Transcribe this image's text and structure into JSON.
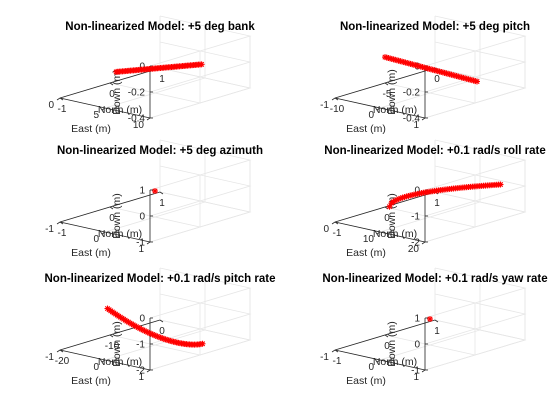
{
  "marker_color": "#ff0000",
  "chart_data": [
    {
      "type": "scatter",
      "title": "Non-linearized Model: +5 deg bank",
      "xlabel": "East (m)",
      "ylabel": "North (m)",
      "zlabel": "Down (m)",
      "xlim": [
        0,
        10
      ],
      "ylim": [
        -1,
        1
      ],
      "zlim": [
        -0.4,
        0
      ],
      "xticks": [
        0,
        5,
        10
      ],
      "yticks": [
        -1,
        0,
        1
      ],
      "zticks": [
        -0.4,
        -0.2,
        0
      ],
      "xticklabels": [
        "0",
        "5",
        "10"
      ],
      "yticklabels": [
        "-1",
        "0",
        "1"
      ],
      "zticklabels": [
        "-0.4",
        "-0.2",
        "0"
      ],
      "series": [
        {
          "x0": 0.8,
          "x1": 9.9,
          "y0": -0.02,
          "y1": 0.05,
          "z0": -0.3,
          "z1": -0.11,
          "n": 55,
          "curve": 0.0
        }
      ]
    },
    {
      "type": "scatter",
      "title": "Non-linearized Model: +5 deg pitch",
      "xlabel": "East (m)",
      "ylabel": "North (m)",
      "zlabel": "Down (m)",
      "xlim": [
        -1,
        1
      ],
      "ylim": [
        -10,
        0
      ],
      "zlim": [
        -0.4,
        0
      ],
      "xticks": [
        -1,
        0,
        1
      ],
      "yticks": [
        -10,
        -5,
        0
      ],
      "zticks": [
        -0.4,
        -0.2,
        0
      ],
      "xticklabels": [
        "-1",
        "0",
        "1"
      ],
      "yticklabels": [
        "-10",
        "-5",
        "0"
      ],
      "zticklabels": [
        "-0.4",
        "-0.2",
        "0"
      ],
      "series": [
        {
          "x0": 0.0,
          "x1": 0.0,
          "y0": -0.3,
          "y1": -9.5,
          "z0": -0.42,
          "z1": -0.02,
          "n": 55,
          "curve": 0.0
        }
      ]
    },
    {
      "type": "scatter",
      "title": "Non-linearized Model: +5 deg azimuth",
      "xlabel": "East (m)",
      "ylabel": "North (m)",
      "zlabel": "Down (m)",
      "xlim": [
        -1,
        1
      ],
      "ylim": [
        -1,
        1
      ],
      "zlim": [
        -1,
        1
      ],
      "xticks": [
        -1,
        0,
        1
      ],
      "yticks": [
        -1,
        0,
        1
      ],
      "zticks": [
        -1,
        0,
        1
      ],
      "xticklabels": [
        "-1",
        "0",
        "1"
      ],
      "yticklabels": [
        "-1",
        "0",
        "1"
      ],
      "zticklabels": [
        "-1",
        "0",
        "1"
      ],
      "series": [
        {
          "x0": 0,
          "x1": 0,
          "y0": 0,
          "y1": 0,
          "z0": 0,
          "z1": 0,
          "n": 1,
          "curve": 0.0
        }
      ]
    },
    {
      "type": "scatter",
      "title": "Non-linearized Model: +0.1 rad/s roll rate",
      "xlabel": "East (m)",
      "ylabel": "North (m)",
      "zlabel": "Down (m)",
      "xlim": [
        0,
        20
      ],
      "ylim": [
        -1,
        1
      ],
      "zlim": [
        -2,
        0
      ],
      "xticks": [
        0,
        10,
        20
      ],
      "yticks": [
        -1,
        0,
        1
      ],
      "zticks": [
        -2,
        -1,
        0
      ],
      "xticklabels": [
        "0",
        "10",
        "20"
      ],
      "yticklabels": [
        "-1",
        "0",
        "1"
      ],
      "zticklabels": [
        "-2",
        "-1",
        "0"
      ],
      "series": [
        {
          "x0": 1.0,
          "x1": 19.0,
          "y0": 0.0,
          "y1": 0.6,
          "z0": -1.95,
          "z1": -0.75,
          "n": 60,
          "curve": 0.9
        }
      ]
    },
    {
      "type": "scatter",
      "title": "Non-linearized Model: +0.1 rad/s pitch rate",
      "xlabel": "East (m)",
      "ylabel": "North (m)",
      "zlabel": "Down (m)",
      "xlim": [
        -1,
        1
      ],
      "ylim": [
        -20,
        0
      ],
      "zlim": [
        -2,
        0
      ],
      "xticks": [
        -1,
        0,
        1
      ],
      "yticks": [
        -20,
        -10,
        0
      ],
      "zticks": [
        -2,
        -1,
        0
      ],
      "xticklabels": [
        "-1",
        "0",
        "1"
      ],
      "yticklabels": [
        "-20",
        "-10",
        "0"
      ],
      "zticklabels": [
        "-2",
        "-1",
        "0"
      ],
      "series": [
        {
          "x0": 0.0,
          "x1": 0.0,
          "y0": -0.5,
          "y1": -19.5,
          "z0": -2.5,
          "z1": -0.05,
          "n": 60,
          "curve": -0.5
        }
      ]
    },
    {
      "type": "scatter",
      "title": "Non-linearized Model: +0.1 rad/s yaw rate",
      "xlabel": "East (m)",
      "ylabel": "North (m)",
      "zlabel": "Down (m)",
      "xlim": [
        -1,
        1
      ],
      "ylim": [
        -1,
        1
      ],
      "zlim": [
        -1,
        1
      ],
      "xticks": [
        -1,
        0,
        1
      ],
      "yticks": [
        -1,
        0,
        1
      ],
      "zticks": [
        -1,
        0,
        1
      ],
      "xticklabels": [
        "-1",
        "0",
        "1"
      ],
      "yticklabels": [
        "-1",
        "0",
        "1"
      ],
      "zticklabels": [
        "-1",
        "0",
        "1"
      ],
      "series": [
        {
          "x0": 0,
          "x1": 0,
          "y0": 0,
          "y1": 0,
          "z0": 0,
          "z1": 0,
          "n": 1,
          "curve": 0.0
        }
      ]
    }
  ]
}
